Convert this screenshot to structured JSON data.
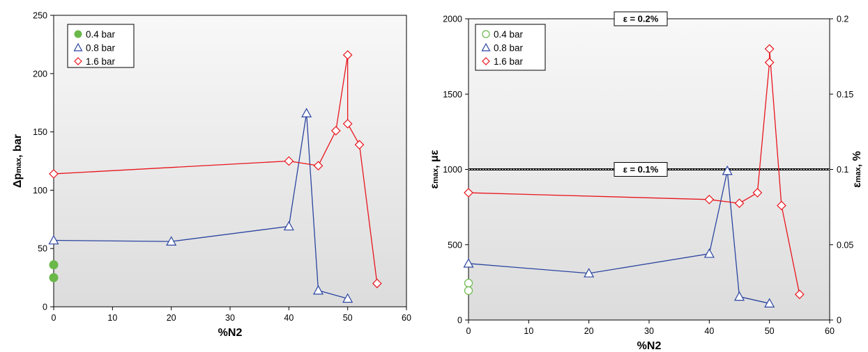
{
  "chart_data": [
    {
      "type": "line",
      "xlabel": "%N2",
      "ylabel": "Δp",
      "ylabel_sub": "max",
      "ylabel_tail": ", bar",
      "xlim": [
        0,
        60
      ],
      "ylim": [
        0,
        250
      ],
      "xticks": [
        0,
        10,
        20,
        30,
        40,
        50,
        60
      ],
      "yticks": [
        0,
        50,
        100,
        150,
        200,
        250
      ],
      "legend_position": "top-left",
      "grid": false,
      "series": [
        {
          "name": "0.4 bar",
          "color": "#6ab84a",
          "marker": "filled-circle",
          "line": false,
          "x": [
            0,
            0
          ],
          "y": [
            36,
            25
          ]
        },
        {
          "name": "0.8 bar",
          "color": "#2a44a0",
          "marker": "triangle",
          "line": true,
          "x": [
            0,
            20,
            40,
            43,
            45,
            50
          ],
          "y": [
            57,
            56,
            69,
            166,
            14,
            7
          ]
        },
        {
          "name": "1.6 bar",
          "color": "#e8141c",
          "marker": "diamond",
          "line": true,
          "x": [
            0,
            40,
            45,
            48,
            50,
            50,
            52,
            55
          ],
          "y": [
            114,
            125,
            121,
            151,
            216,
            157,
            139,
            20
          ]
        }
      ]
    },
    {
      "type": "line",
      "xlabel": "%N2",
      "ylabel": "ε",
      "ylabel_sub": "max",
      "ylabel_tail": ", με",
      "y2label": "ε",
      "y2label_sub": "max",
      "y2label_tail": ", %",
      "xlim": [
        0,
        60
      ],
      "ylim": [
        0,
        2000
      ],
      "y2lim": [
        0,
        0.2
      ],
      "xticks": [
        0,
        10,
        20,
        30,
        40,
        50,
        60
      ],
      "yticks": [
        0,
        500,
        1000,
        1500,
        2000
      ],
      "y2ticks": [
        "0",
        "0.05",
        "0.1",
        "0.15",
        "0.2"
      ],
      "legend_position": "top-left",
      "grid": false,
      "reference_lines": [
        {
          "label": "ε = 0.1%",
          "y": 1000
        },
        {
          "label": "ε = 0.2%",
          "y": 2000
        }
      ],
      "series": [
        {
          "name": "0.4 bar",
          "color": "#6ab84a",
          "marker": "open-circle",
          "line": false,
          "x": [
            0,
            0
          ],
          "y": [
            245,
            195
          ]
        },
        {
          "name": "0.8 bar",
          "color": "#2a44a0",
          "marker": "triangle",
          "line": true,
          "x": [
            0,
            20,
            40,
            43,
            45,
            50
          ],
          "y": [
            375,
            310,
            440,
            990,
            155,
            110
          ]
        },
        {
          "name": "1.6 bar",
          "color": "#e8141c",
          "marker": "diamond",
          "line": true,
          "x": [
            0,
            40,
            45,
            48,
            50,
            50,
            52,
            55
          ],
          "y": [
            845,
            800,
            775,
            845,
            1710,
            1800,
            760,
            170
          ]
        }
      ]
    }
  ]
}
